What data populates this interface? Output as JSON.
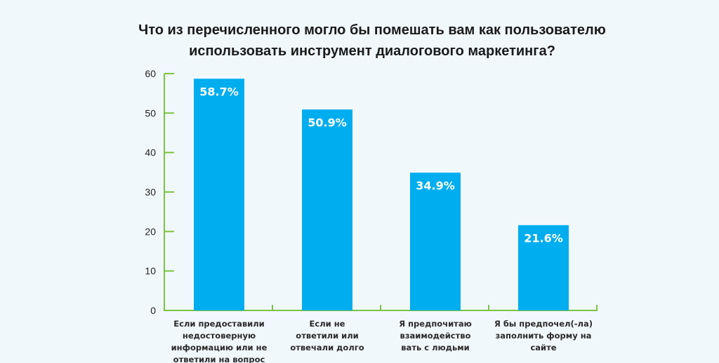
{
  "chart_data": {
    "type": "bar",
    "title_lines": [
      "Что из перечисленного могло бы помешать вам как пользователю",
      "использовать инструмент диалогового маркетинга?"
    ],
    "categories": [
      [
        "Если предоставили",
        "недостоверную",
        "информацию или не",
        "ответили на вопрос"
      ],
      [
        "Если не",
        "ответили или",
        "отвечали долго"
      ],
      [
        "Я предпочитаю",
        "взаимодейство",
        "вать с людьми"
      ],
      [
        "Я бы предпочел(-ла)",
        "заполнить форму на",
        "сайте"
      ]
    ],
    "values": [
      58.7,
      50.9,
      34.9,
      21.6
    ],
    "data_labels": [
      "58.7%",
      "50.9%",
      "34.9%",
      "21.6%"
    ],
    "ylim": [
      0,
      60
    ],
    "yticks": [
      0,
      10,
      20,
      30,
      40,
      50,
      60
    ],
    "xlabel": "",
    "ylabel": "",
    "grid": false,
    "colors": {
      "bar": "#00adef",
      "axis": "#7dc242",
      "background": "#f1f8fc"
    }
  }
}
